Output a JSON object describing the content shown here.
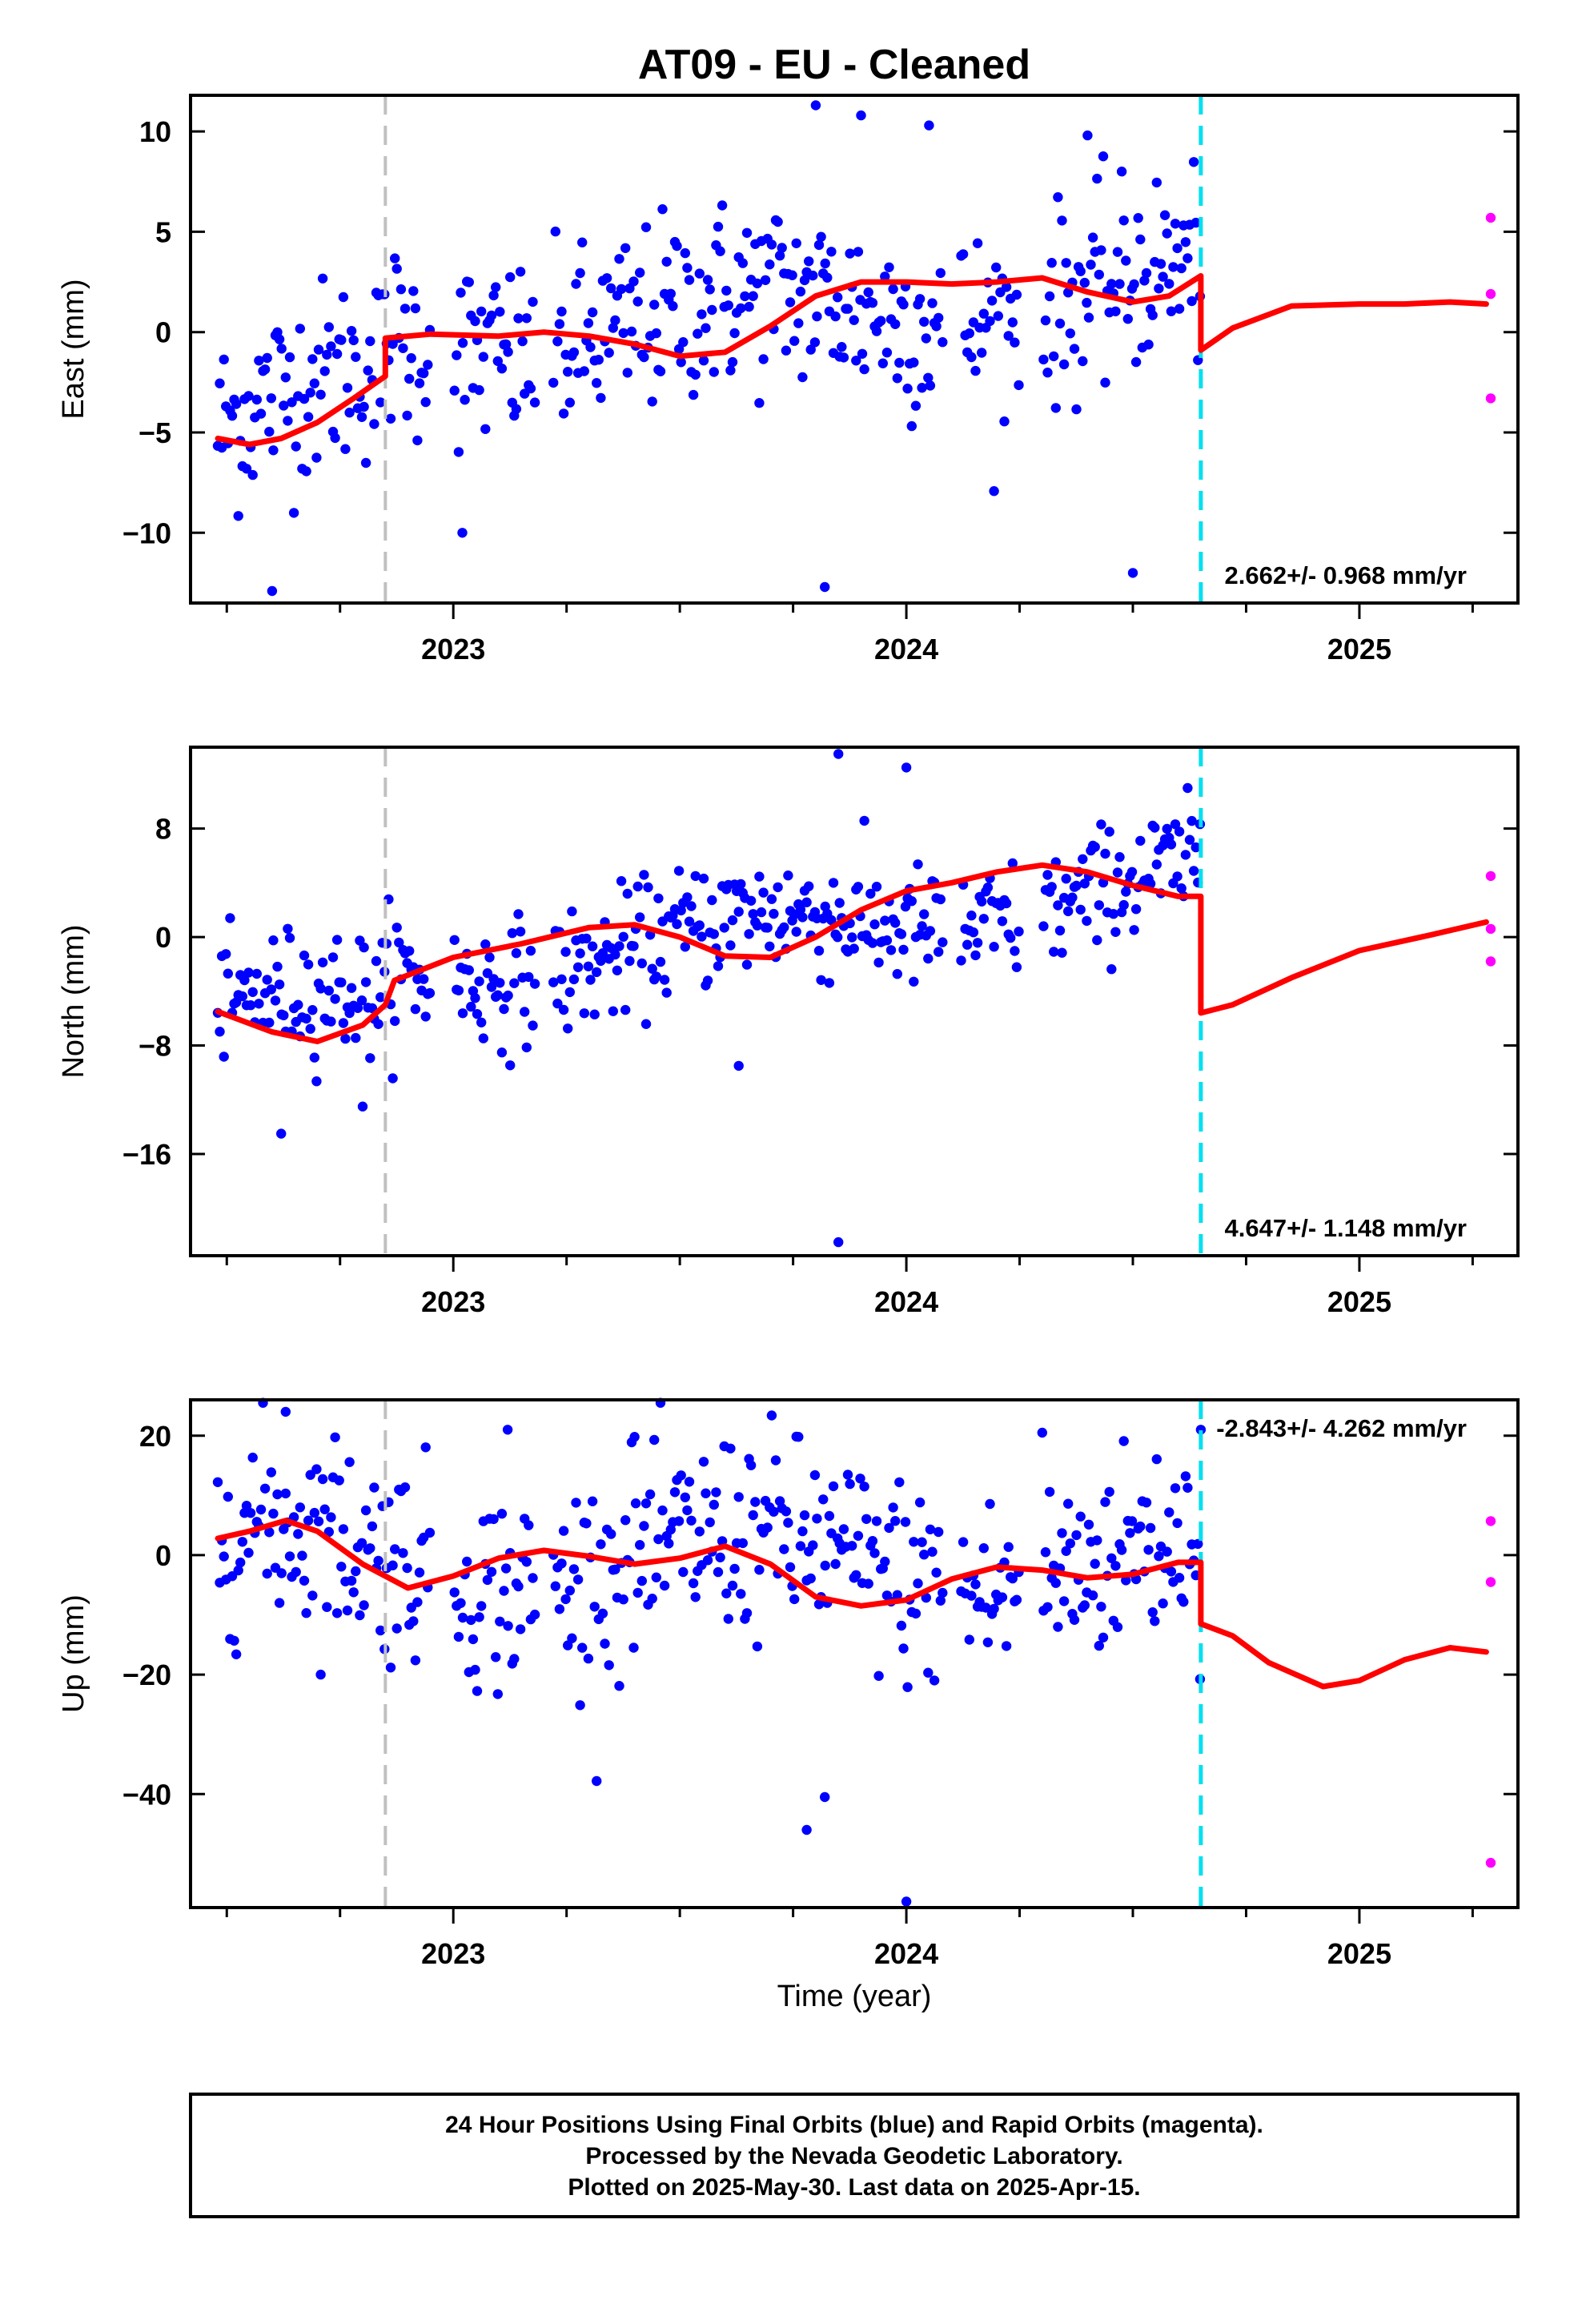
{
  "chart_data": {
    "type": "scatter",
    "title": "AT09  - EU - Cleaned",
    "xlabel": "Time (year)",
    "xlim": [
      2022.42,
      2025.35
    ],
    "x_ticks": [
      2023,
      2024,
      2025
    ],
    "x_minor_ticks": [
      2022.5,
      2022.75,
      2023.25,
      2023.5,
      2023.75,
      2024.25,
      2024.5,
      2024.75,
      2025.25
    ],
    "grid": false,
    "legend": "none",
    "colors": {
      "final": "#0000ff",
      "rapid": "#ff00ff",
      "model": "#ff0000",
      "equipment_change": "#c0c0c0",
      "data_break": "#00e0f0"
    },
    "equipment_change_year": 2022.85,
    "data_break_year": 2024.65,
    "panels": [
      {
        "ylabel": "East (mm)",
        "ylim": [
          -13.5,
          11.8
        ],
        "y_ticks": [
          -10,
          -5,
          0,
          5,
          10
        ],
        "rate_label": "2.662+/- 0.968 mm/yr",
        "rate_position": "bottom-right",
        "model": [
          [
            2022.48,
            -5.3
          ],
          [
            2022.55,
            -5.6
          ],
          [
            2022.62,
            -5.3
          ],
          [
            2022.7,
            -4.5
          ],
          [
            2022.78,
            -3.3
          ],
          [
            2022.85,
            -2.2
          ],
          [
            2022.85,
            -0.3
          ],
          [
            2022.95,
            -0.1
          ],
          [
            2023.1,
            -0.2
          ],
          [
            2023.2,
            0.0
          ],
          [
            2023.3,
            -0.2
          ],
          [
            2023.4,
            -0.6
          ],
          [
            2023.5,
            -1.2
          ],
          [
            2023.6,
            -1.0
          ],
          [
            2023.7,
            0.3
          ],
          [
            2023.8,
            1.8
          ],
          [
            2023.9,
            2.5
          ],
          [
            2024.0,
            2.5
          ],
          [
            2024.1,
            2.4
          ],
          [
            2024.2,
            2.5
          ],
          [
            2024.3,
            2.7
          ],
          [
            2024.4,
            2.0
          ],
          [
            2024.5,
            1.5
          ],
          [
            2024.58,
            1.8
          ],
          [
            2024.65,
            2.8
          ],
          [
            2024.65,
            -0.9
          ],
          [
            2024.72,
            0.2
          ],
          [
            2024.85,
            1.3
          ],
          [
            2025.0,
            1.4
          ],
          [
            2025.1,
            1.4
          ],
          [
            2025.2,
            1.5
          ],
          [
            2025.28,
            1.4
          ]
        ],
        "rapid": [
          [
            2025.29,
            5.7
          ],
          [
            2025.29,
            1.9
          ],
          [
            2025.29,
            -3.3
          ]
        ],
        "trend_segments": [
          {
            "start": 2022.48,
            "end": 2022.85,
            "v0": -5.5,
            "v1": -2.0
          },
          {
            "start": 2022.85,
            "end": 2024.65,
            "v0": -0.5,
            "v1": 2.3
          }
        ],
        "annual_amp": 1.2,
        "noise_sd": 2.4,
        "outliers": [
          [
            2022.6,
            -12.9
          ],
          [
            2023.02,
            -10.0
          ],
          [
            2023.82,
            -12.7
          ],
          [
            2024.5,
            -12.0
          ],
          [
            2023.8,
            11.3
          ],
          [
            2023.9,
            10.8
          ],
          [
            2024.05,
            10.3
          ],
          [
            2024.4,
            9.8
          ]
        ]
      },
      {
        "ylabel": "North (mm)",
        "ylim": [
          -23.5,
          14
        ],
        "y_ticks": [
          -16,
          -8,
          0,
          8
        ],
        "rate_label": "4.647+/- 1.148 mm/yr",
        "rate_position": "bottom-right",
        "model": [
          [
            2022.48,
            -5.5
          ],
          [
            2022.6,
            -7.0
          ],
          [
            2022.7,
            -7.7
          ],
          [
            2022.8,
            -6.5
          ],
          [
            2022.85,
            -5.0
          ],
          [
            2022.87,
            -3.2
          ],
          [
            2023.0,
            -1.5
          ],
          [
            2023.15,
            -0.5
          ],
          [
            2023.3,
            0.7
          ],
          [
            2023.4,
            0.9
          ],
          [
            2023.5,
            0.0
          ],
          [
            2023.6,
            -1.4
          ],
          [
            2023.7,
            -1.5
          ],
          [
            2023.8,
            0.0
          ],
          [
            2023.9,
            2.0
          ],
          [
            2024.0,
            3.4
          ],
          [
            2024.1,
            4.0
          ],
          [
            2024.2,
            4.8
          ],
          [
            2024.3,
            5.3
          ],
          [
            2024.4,
            4.8
          ],
          [
            2024.5,
            3.8
          ],
          [
            2024.6,
            3.0
          ],
          [
            2024.65,
            3.0
          ],
          [
            2024.65,
            -5.6
          ],
          [
            2024.72,
            -5.0
          ],
          [
            2024.85,
            -3.0
          ],
          [
            2025.0,
            -1.0
          ],
          [
            2025.15,
            0.1
          ],
          [
            2025.28,
            1.1
          ]
        ],
        "rapid": [
          [
            2025.29,
            4.5
          ],
          [
            2025.29,
            0.6
          ],
          [
            2025.29,
            -1.8
          ]
        ],
        "trend_segments": [
          {
            "start": 2022.48,
            "end": 2022.85,
            "v0": -6.0,
            "v1": -5.0
          },
          {
            "start": 2022.85,
            "end": 2024.65,
            "v0": -3.0,
            "v1": 4.0
          }
        ],
        "annual_amp": 1.5,
        "noise_sd": 2.3,
        "outliers": [
          [
            2023.85,
            -22.5
          ],
          [
            2023.85,
            13.5
          ],
          [
            2024.0,
            12.5
          ],
          [
            2022.62,
            -14.5
          ],
          [
            2022.8,
            -12.5
          ],
          [
            2023.63,
            -9.5
          ]
        ]
      },
      {
        "ylabel": "Up (mm)",
        "ylim": [
          -59,
          26
        ],
        "y_ticks": [
          -40,
          -20,
          0,
          20
        ],
        "rate_label": "-2.843+/- 4.262 mm/yr",
        "rate_position": "top-right",
        "model": [
          [
            2022.48,
            2.8
          ],
          [
            2022.55,
            4.0
          ],
          [
            2022.63,
            5.8
          ],
          [
            2022.7,
            4.0
          ],
          [
            2022.8,
            -1.5
          ],
          [
            2022.9,
            -5.5
          ],
          [
            2023.0,
            -3.5
          ],
          [
            2023.1,
            -0.5
          ],
          [
            2023.2,
            0.8
          ],
          [
            2023.3,
            -0.2
          ],
          [
            2023.4,
            -1.5
          ],
          [
            2023.5,
            -0.5
          ],
          [
            2023.6,
            1.5
          ],
          [
            2023.7,
            -1.5
          ],
          [
            2023.8,
            -7.0
          ],
          [
            2023.9,
            -8.5
          ],
          [
            2024.0,
            -7.5
          ],
          [
            2024.1,
            -4.0
          ],
          [
            2024.2,
            -2.0
          ],
          [
            2024.3,
            -2.5
          ],
          [
            2024.4,
            -3.8
          ],
          [
            2024.5,
            -3.2
          ],
          [
            2024.6,
            -1.2
          ],
          [
            2024.65,
            -1.2
          ],
          [
            2024.65,
            -11.5
          ],
          [
            2024.72,
            -13.5
          ],
          [
            2024.8,
            -18.0
          ],
          [
            2024.92,
            -22.0
          ],
          [
            2025.0,
            -21.0
          ],
          [
            2025.1,
            -17.5
          ],
          [
            2025.2,
            -15.5
          ],
          [
            2025.28,
            -16.2
          ]
        ],
        "rapid": [
          [
            2025.29,
            5.7
          ],
          [
            2025.29,
            -4.5
          ],
          [
            2025.29,
            -51.5
          ]
        ],
        "trend_segments": [
          {
            "start": 2022.48,
            "end": 2022.85,
            "v0": 2.0,
            "v1": -2.0
          },
          {
            "start": 2022.85,
            "end": 2024.65,
            "v0": -1.0,
            "v1": -1.5
          }
        ],
        "annual_amp": 5.0,
        "noise_sd": 8.5,
        "outliers": [
          [
            2024.0,
            -58.0
          ],
          [
            2023.78,
            -46.0
          ],
          [
            2023.82,
            -40.5
          ],
          [
            2022.63,
            24.0
          ],
          [
            2023.12,
            21.0
          ],
          [
            2023.4,
            19.8
          ],
          [
            2024.3,
            20.5
          ],
          [
            2024.65,
            21.0
          ]
        ]
      }
    ]
  },
  "footer": {
    "lines": [
      "24 Hour Positions Using Final Orbits (blue) and Rapid Orbits (magenta).",
      "Processed by the Nevada Geodetic Laboratory.",
      "Plotted on 2025-May-30. Last data on 2025-Apr-15."
    ]
  }
}
